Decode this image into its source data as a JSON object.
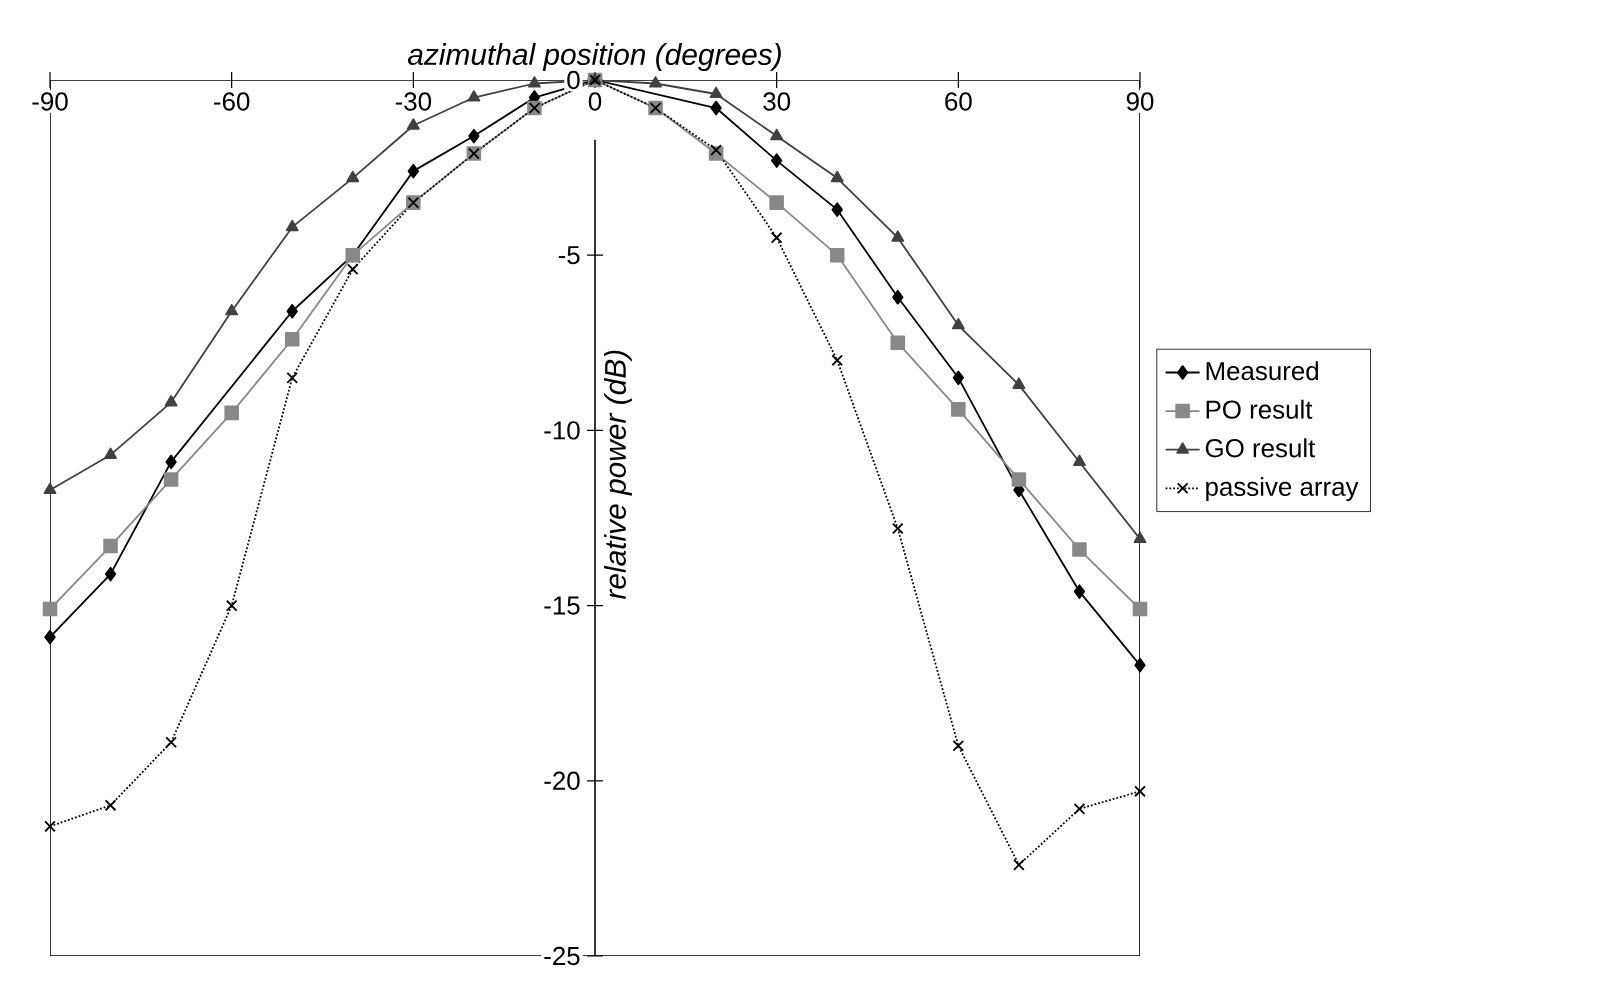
{
  "chart_data": {
    "type": "line",
    "xlabel": "azimuthal position (degrees)",
    "ylabel": "relative power (dB)",
    "x": [
      -90,
      -80,
      -70,
      -60,
      -50,
      -40,
      -30,
      -20,
      -10,
      0,
      10,
      20,
      30,
      40,
      50,
      60,
      70,
      80,
      90
    ],
    "xlim": [
      -90,
      90
    ],
    "xticks": [
      -90,
      -60,
      -30,
      0,
      30,
      60,
      90
    ],
    "ylim": [
      -25,
      0
    ],
    "yticks": [
      -25,
      -20,
      -15,
      -10,
      -5,
      0
    ],
    "legend": "right",
    "grid": false,
    "series": [
      {
        "name": "Measured",
        "color": "#000000",
        "marker": "diamond",
        "line_style": "solid",
        "values": [
          -15.9,
          -14.1,
          -10.9,
          null,
          -6.6,
          -5.0,
          -2.6,
          -1.6,
          -0.5,
          0,
          null,
          -0.8,
          -2.3,
          -3.7,
          -6.2,
          -8.5,
          -11.7,
          -14.6,
          -16.7
        ]
      },
      {
        "name": "PO result",
        "color": "#888888",
        "marker": "square",
        "line_style": "solid",
        "values": [
          -15.1,
          -13.3,
          -11.4,
          -9.5,
          -7.4,
          -5.0,
          -3.5,
          -2.1,
          -0.8,
          0,
          -0.8,
          -2.1,
          -3.5,
          -5.0,
          -7.5,
          -9.4,
          -11.4,
          -13.4,
          -15.1
        ]
      },
      {
        "name": "GO result",
        "color": "#404040",
        "marker": "triangle",
        "line_style": "solid",
        "values": [
          -11.7,
          -10.7,
          -9.2,
          -6.6,
          -4.2,
          -2.8,
          -1.3,
          -0.5,
          -0.1,
          0,
          -0.1,
          -0.4,
          -1.6,
          -2.8,
          -4.5,
          -7.0,
          -8.7,
          -10.9,
          -13.1
        ]
      },
      {
        "name": "passive array",
        "color": "#000000",
        "marker": "cross",
        "line_style": "dotted",
        "values": [
          -21.3,
          -20.7,
          -18.9,
          -15.0,
          -8.5,
          -5.4,
          -3.5,
          -2.1,
          -0.8,
          0,
          -0.8,
          -2.0,
          -4.5,
          -8.0,
          -12.8,
          -19.0,
          -22.4,
          -20.8,
          -20.3
        ]
      }
    ]
  }
}
